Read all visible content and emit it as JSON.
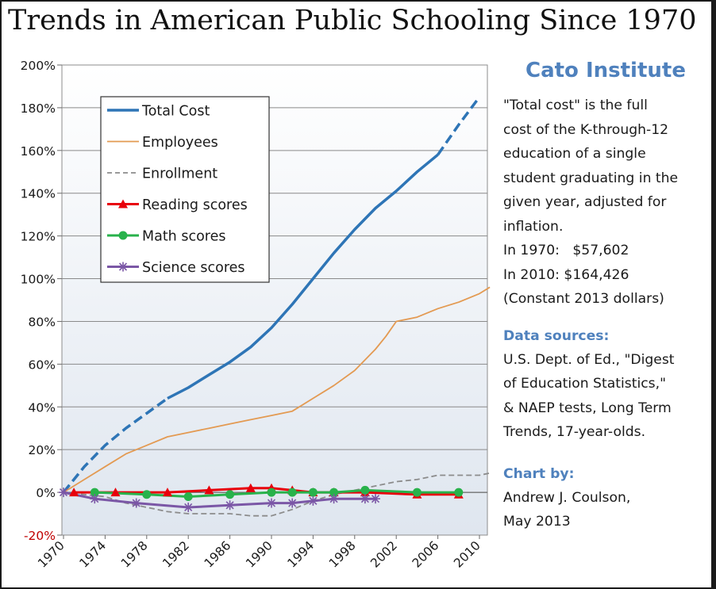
{
  "title": "Trends in American Public Schooling Since 1970",
  "sidebar": {
    "org": "Cato Institute",
    "description_lines": [
      "\"Total cost\" is the full",
      "cost of the K-through-12",
      "education of a single",
      "student graduating in the",
      "given year, adjusted for",
      "inflation."
    ],
    "cost_1970": "In 1970:   $57,602",
    "cost_2010": "In 2010: $164,426",
    "dollars_note": "(Constant 2013 dollars)",
    "sources_heading": "Data sources:",
    "sources_lines": [
      "U.S. Dept. of Ed., \"Digest",
      "of Education Statistics,\"",
      "& NAEP tests, Long Term",
      "Trends, 17-year-olds."
    ],
    "credit_heading": "Chart by:",
    "credit_lines": [
      "Andrew J. Coulson,",
      "May 2013"
    ]
  },
  "colors": {
    "total_cost": "#2e75b6",
    "employees": "#e39a52",
    "enrollment": "#8c8c8c",
    "reading": "#e8000b",
    "math": "#28b24b",
    "science": "#7b57a6",
    "plot_bg_top": "#ffffff",
    "plot_bg_bottom": "#dfe6ef",
    "accent": "#4f81bd"
  },
  "chart_data": {
    "type": "line",
    "title": "Trends in American Public Schooling Since 1970",
    "xlabel": "",
    "ylabel": "",
    "xlim": [
      1970,
      2012
    ],
    "ylim": [
      -20,
      200
    ],
    "x_ticks": [
      1970,
      1974,
      1978,
      1982,
      1986,
      1990,
      1994,
      1998,
      2002,
      2006,
      2010
    ],
    "y_ticks": [
      -20,
      0,
      20,
      40,
      60,
      80,
      100,
      120,
      140,
      160,
      180,
      200
    ],
    "y_tick_labels": [
      "-20%",
      "0%",
      "20%",
      "40%",
      "60%",
      "80%",
      "100%",
      "120%",
      "140%",
      "160%",
      "180%",
      "200%"
    ],
    "grid": "horizontal",
    "legend_position": "top-left",
    "series": [
      {
        "name": "Total Cost",
        "key": "total_cost",
        "style": "solid",
        "width": 3.5,
        "marker": "none",
        "points": [
          [
            1980,
            44
          ],
          [
            1982,
            49
          ],
          [
            1984,
            55
          ],
          [
            1986,
            61
          ],
          [
            1988,
            68
          ],
          [
            1990,
            77
          ],
          [
            1992,
            88
          ],
          [
            1994,
            100
          ],
          [
            1996,
            112
          ],
          [
            1998,
            123
          ],
          [
            2000,
            133
          ],
          [
            2002,
            141
          ],
          [
            2004,
            150
          ],
          [
            2006,
            158
          ]
        ]
      },
      {
        "name": "Total Cost (dashed segment)",
        "key": "total_cost",
        "style": "dash",
        "width": 3.5,
        "marker": "none",
        "in_legend": false,
        "points": [
          [
            1970,
            0
          ],
          [
            1972,
            12
          ],
          [
            1974,
            22
          ],
          [
            1976,
            30
          ],
          [
            1978,
            37
          ],
          [
            1980,
            44
          ]
        ]
      },
      {
        "name": "Total Cost (dashed segment)",
        "key": "total_cost",
        "style": "dash",
        "width": 3.5,
        "marker": "none",
        "in_legend": false,
        "points": [
          [
            2006,
            158
          ],
          [
            2008,
            172
          ],
          [
            2010,
            185
          ]
        ]
      },
      {
        "name": "Employees",
        "key": "employees",
        "style": "solid",
        "width": 1.8,
        "marker": "none",
        "points": [
          [
            1970,
            0
          ],
          [
            1972,
            6
          ],
          [
            1974,
            12
          ],
          [
            1976,
            18
          ],
          [
            1978,
            22
          ],
          [
            1980,
            26
          ],
          [
            1982,
            28
          ],
          [
            1984,
            30
          ],
          [
            1986,
            32
          ],
          [
            1988,
            34
          ],
          [
            1990,
            36
          ],
          [
            1992,
            38
          ],
          [
            1994,
            44
          ],
          [
            1996,
            50
          ],
          [
            1998,
            57
          ],
          [
            2000,
            67
          ],
          [
            2001,
            73
          ],
          [
            2002,
            80
          ],
          [
            2004,
            82
          ],
          [
            2006,
            86
          ],
          [
            2008,
            89
          ],
          [
            2010,
            93
          ],
          [
            2011,
            96
          ]
        ]
      },
      {
        "name": "Enrollment",
        "key": "enrollment",
        "style": "dash",
        "width": 1.8,
        "marker": "none",
        "points": [
          [
            1970,
            0
          ],
          [
            1972,
            -1
          ],
          [
            1974,
            -2
          ],
          [
            1976,
            -5
          ],
          [
            1978,
            -7
          ],
          [
            1980,
            -9
          ],
          [
            1982,
            -10
          ],
          [
            1984,
            -10
          ],
          [
            1986,
            -10
          ],
          [
            1988,
            -11
          ],
          [
            1990,
            -11
          ],
          [
            1992,
            -8
          ],
          [
            1994,
            -4
          ],
          [
            1996,
            -1
          ],
          [
            1998,
            1
          ],
          [
            2000,
            3
          ],
          [
            2002,
            5
          ],
          [
            2004,
            6
          ],
          [
            2006,
            8
          ],
          [
            2008,
            8
          ],
          [
            2010,
            8
          ],
          [
            2011,
            9
          ]
        ]
      },
      {
        "name": "Reading scores",
        "key": "reading",
        "style": "solid",
        "width": 3,
        "marker": "triangle",
        "points": [
          [
            1971,
            0
          ],
          [
            1975,
            0
          ],
          [
            1980,
            0
          ],
          [
            1984,
            1
          ],
          [
            1988,
            2
          ],
          [
            1990,
            2
          ],
          [
            1992,
            1
          ],
          [
            1994,
            0
          ],
          [
            1996,
            0
          ],
          [
            1999,
            0
          ],
          [
            2004,
            -1
          ],
          [
            2008,
            -1
          ]
        ]
      },
      {
        "name": "Math scores",
        "key": "math",
        "style": "solid",
        "width": 3,
        "marker": "circle",
        "points": [
          [
            1973,
            0
          ],
          [
            1978,
            -1
          ],
          [
            1982,
            -2
          ],
          [
            1986,
            -1
          ],
          [
            1990,
            0
          ],
          [
            1992,
            0
          ],
          [
            1994,
            0
          ],
          [
            1996,
            0
          ],
          [
            1999,
            1
          ],
          [
            2004,
            0
          ],
          [
            2008,
            0
          ]
        ]
      },
      {
        "name": "Science scores",
        "key": "science",
        "style": "solid",
        "width": 3,
        "marker": "asterisk",
        "points": [
          [
            1970,
            0
          ],
          [
            1973,
            -3
          ],
          [
            1977,
            -5
          ],
          [
            1982,
            -7
          ],
          [
            1986,
            -6
          ],
          [
            1990,
            -5
          ],
          [
            1992,
            -5
          ],
          [
            1994,
            -4
          ],
          [
            1996,
            -3
          ],
          [
            1999,
            -3
          ],
          [
            2000,
            -3
          ]
        ]
      }
    ]
  }
}
